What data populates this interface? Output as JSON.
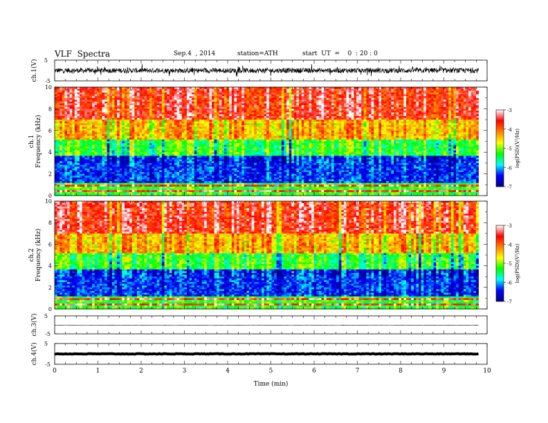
{
  "header": {
    "title": "VLF  Spectra",
    "date": "Sep.4  , 2014",
    "station": "station=ATH",
    "start": "start  UT  =    0  : 20 : 0"
  },
  "chart_data": {
    "type": "heatmap",
    "xlabel": "Time  (min)",
    "xlim": [
      0,
      10
    ],
    "x_ticks": [
      "0",
      "1",
      "2",
      "3",
      "4",
      "5",
      "6",
      "7",
      "8",
      "9",
      "10"
    ],
    "data_end_minute": 9.8,
    "panels": [
      {
        "type": "line",
        "ylabel": "ch.1(V)",
        "ylim": [
          -5,
          5
        ],
        "y_ticks": [
          "5",
          "-5"
        ],
        "description_level": 0.0,
        "amplitude": 1.2,
        "noisy": true
      },
      {
        "type": "heatmap",
        "ylabel_top": "ch.1",
        "ylabel": "Frequency  (kHz)",
        "ylim": [
          0,
          10
        ],
        "y_ticks": [
          "0",
          "2",
          "4",
          "6",
          "8",
          "10"
        ],
        "colorbar": {
          "label": "log(PSD)(V²/Hz)",
          "range": [
            -7,
            -3
          ],
          "ticks": [
            "-3",
            "-4",
            "-5",
            "-6",
            "-7"
          ]
        }
      },
      {
        "type": "heatmap",
        "ylabel_top": "ch.2",
        "ylabel": "Frequency  (kHz)",
        "ylim": [
          0,
          10
        ],
        "y_ticks": [
          "0",
          "2",
          "4",
          "6",
          "8",
          "10"
        ],
        "colorbar": {
          "label": "log(PSD)(V²/Hz)",
          "range": [
            -7,
            -3
          ],
          "ticks": [
            "-3",
            "-4",
            "-5",
            "-6",
            "-7"
          ]
        }
      },
      {
        "type": "line",
        "ylabel": "ch.3(V)",
        "ylim": [
          -5,
          5
        ],
        "y_ticks": [
          "5",
          "-5"
        ],
        "description_level": -0.2,
        "amplitude": 0.05,
        "noisy": false
      },
      {
        "type": "line",
        "ylabel": "ch.4(V)",
        "ylim": [
          -5,
          5
        ],
        "y_ticks": [
          "5",
          "-5"
        ],
        "description_level": 0.0,
        "amplitude": 0.15,
        "noisy": false
      }
    ],
    "spectrogram_bands_khz": [
      {
        "from": 0.0,
        "to": 1.2,
        "level": -4.6,
        "note": "striped low band"
      },
      {
        "from": 1.2,
        "to": 3.6,
        "level": -6.3
      },
      {
        "from": 3.6,
        "to": 5.2,
        "level": -5.2
      },
      {
        "from": 5.2,
        "to": 7.0,
        "level": -4.3
      },
      {
        "from": 7.0,
        "to": 10.0,
        "level": -3.5
      }
    ],
    "colors": {
      "cmap": [
        "#000080",
        "#0000ff",
        "#00ffff",
        "#00ff00",
        "#ffff00",
        "#ff8000",
        "#ff0000",
        "#ffffff"
      ],
      "trace": "#000000"
    }
  }
}
